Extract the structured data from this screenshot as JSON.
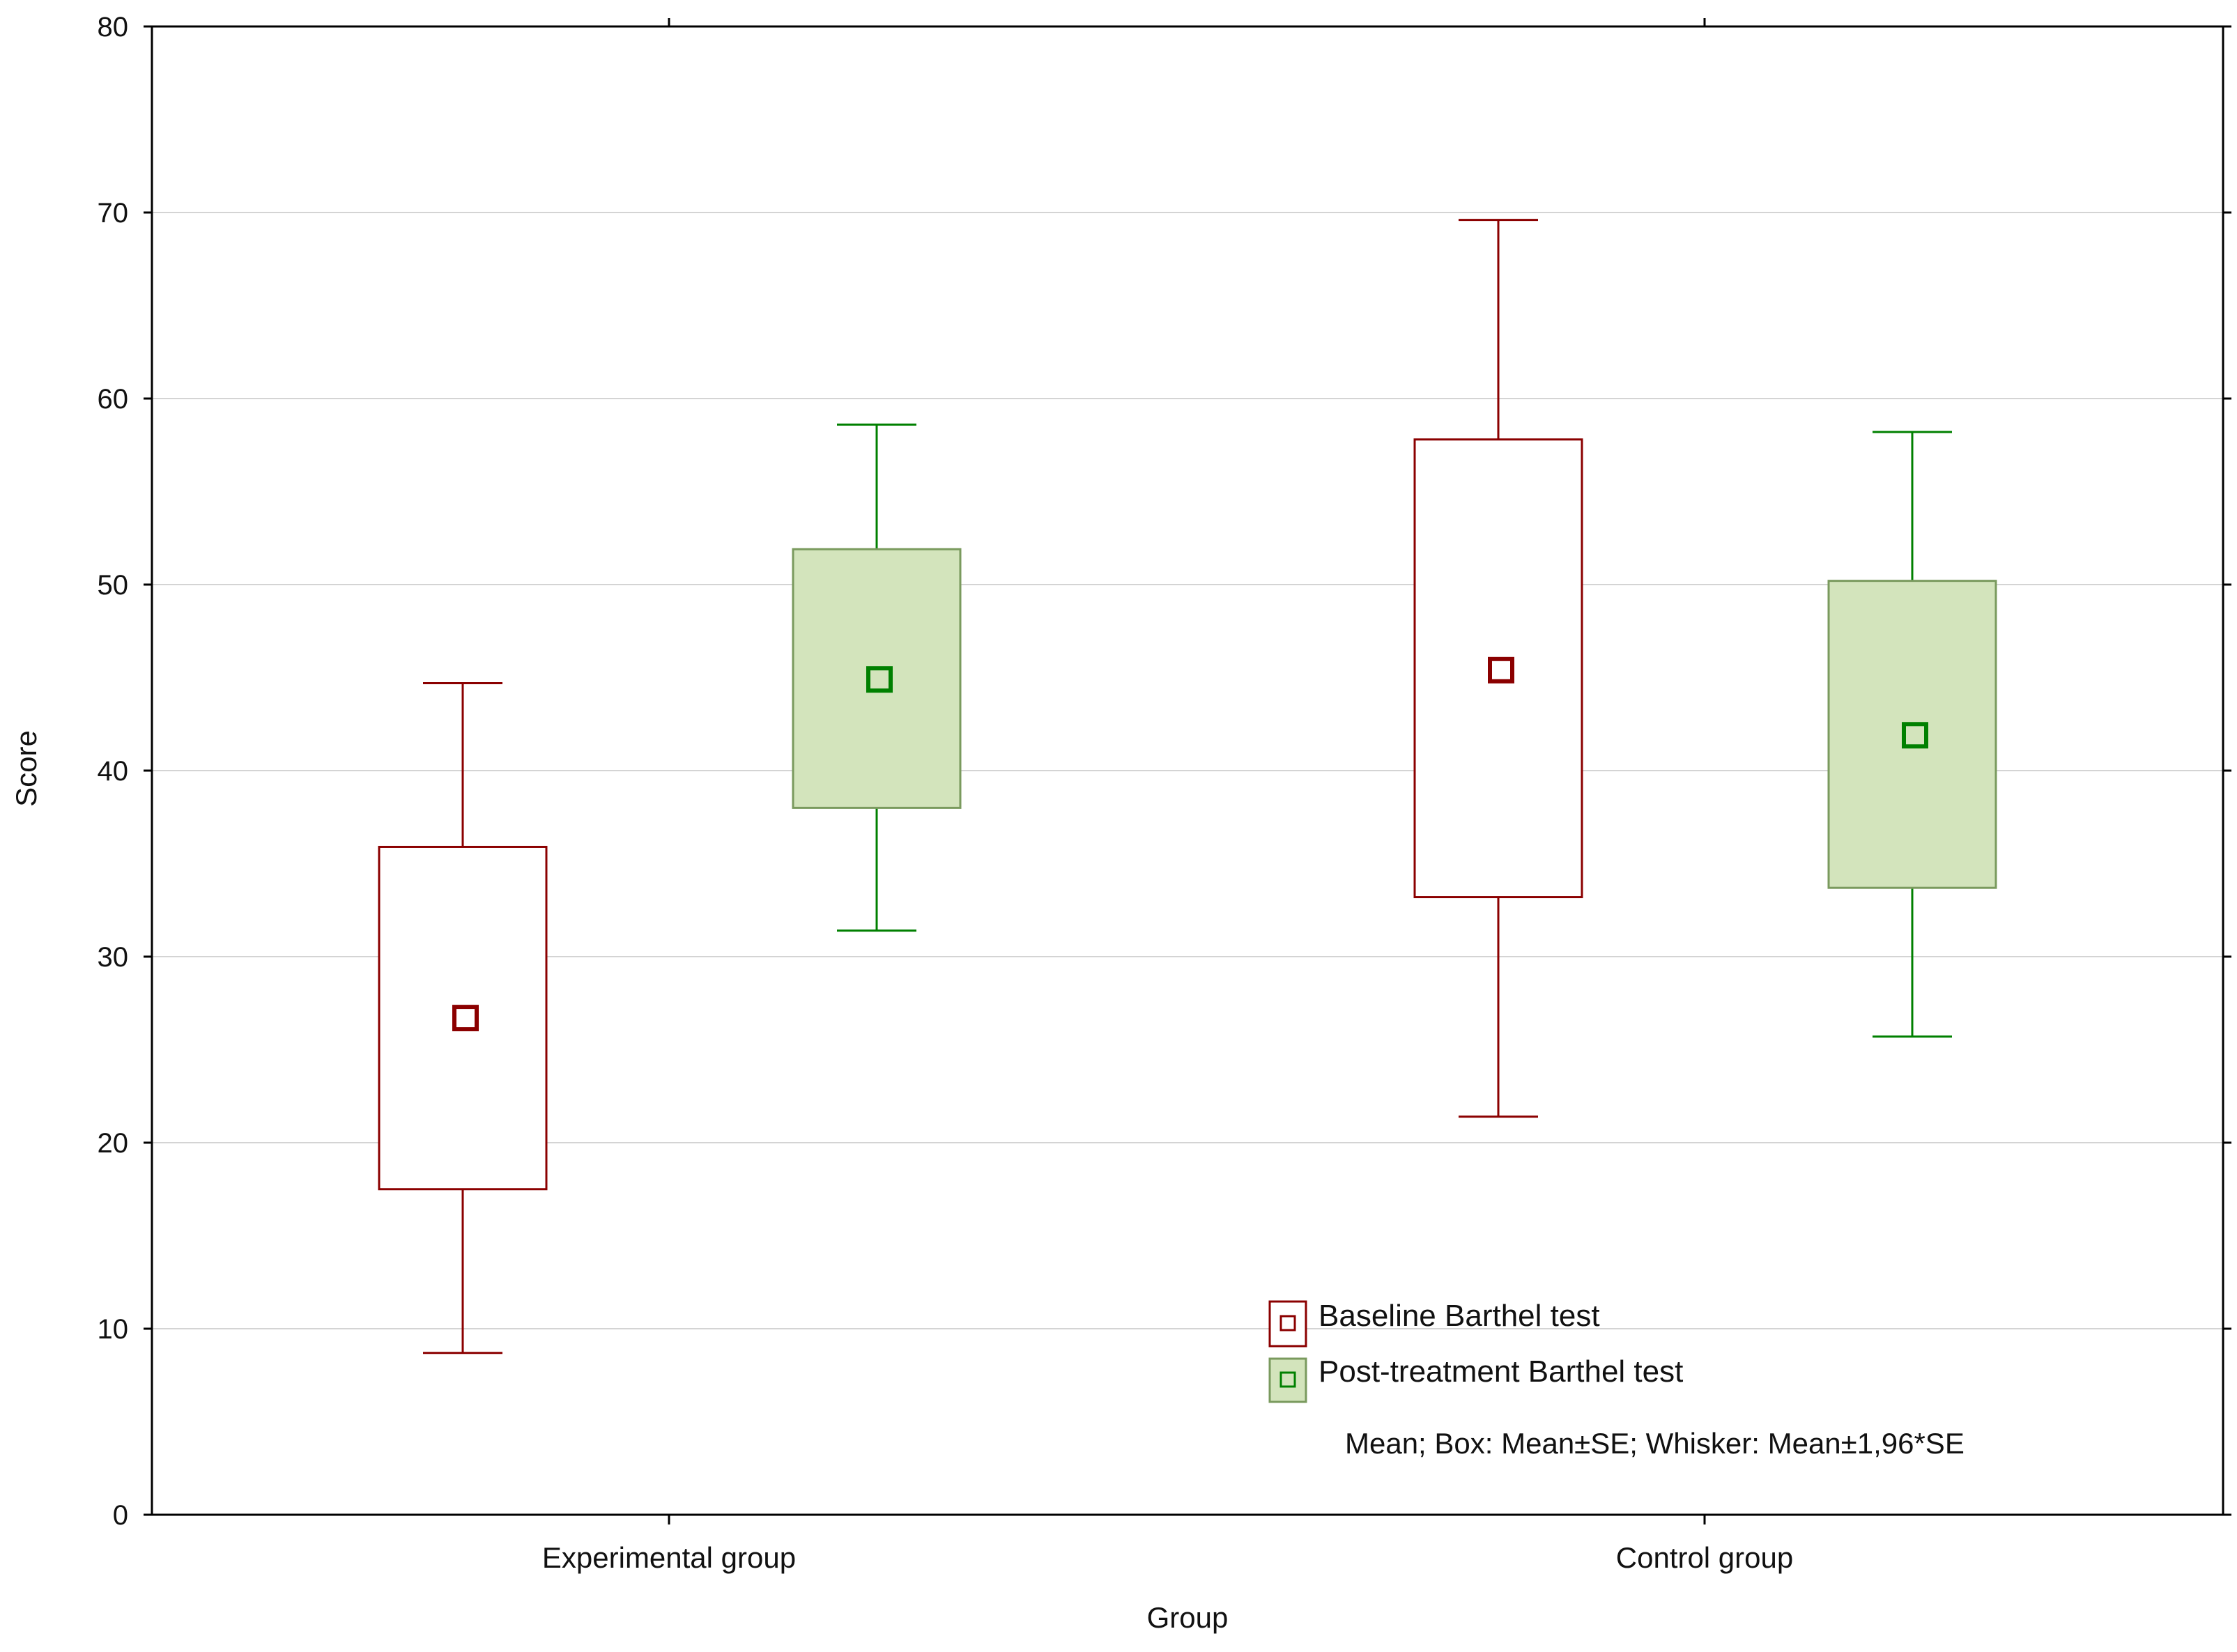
{
  "chart_data": {
    "type": "box",
    "title": "",
    "xlabel": "Group",
    "ylabel": "Score",
    "ylim": [
      0,
      80
    ],
    "yticks": [
      0,
      10,
      20,
      30,
      40,
      50,
      60,
      70,
      80
    ],
    "grid": true,
    "categories": [
      "Experimental group",
      "Control group"
    ],
    "series": [
      {
        "name": "Baseline Barthel test",
        "color": "#8B0000",
        "fill": "#FFFFFF",
        "stats": [
          {
            "category": "Experimental group",
            "mean": 26.7,
            "box_low": 17.5,
            "box_high": 35.9,
            "whisker_low": 8.7,
            "whisker_high": 44.7
          },
          {
            "category": "Control group",
            "mean": 45.4,
            "box_low": 33.2,
            "box_high": 57.8,
            "whisker_low": 21.4,
            "whisker_high": 69.6
          }
        ]
      },
      {
        "name": "Post-treatment Barthel test",
        "color": "#008000",
        "fill": "#D3E4BC",
        "stats": [
          {
            "category": "Experimental group",
            "mean": 44.9,
            "box_low": 38.0,
            "box_high": 51.9,
            "whisker_low": 31.4,
            "whisker_high": 58.6
          },
          {
            "category": "Control group",
            "mean": 41.9,
            "box_low": 33.7,
            "box_high": 50.2,
            "whisker_low": 25.7,
            "whisker_high": 58.2
          }
        ]
      }
    ],
    "legend": {
      "position": "bottom-center",
      "note": "Mean; Box: Mean±SE; Whisker: Mean±1,96*SE"
    }
  }
}
